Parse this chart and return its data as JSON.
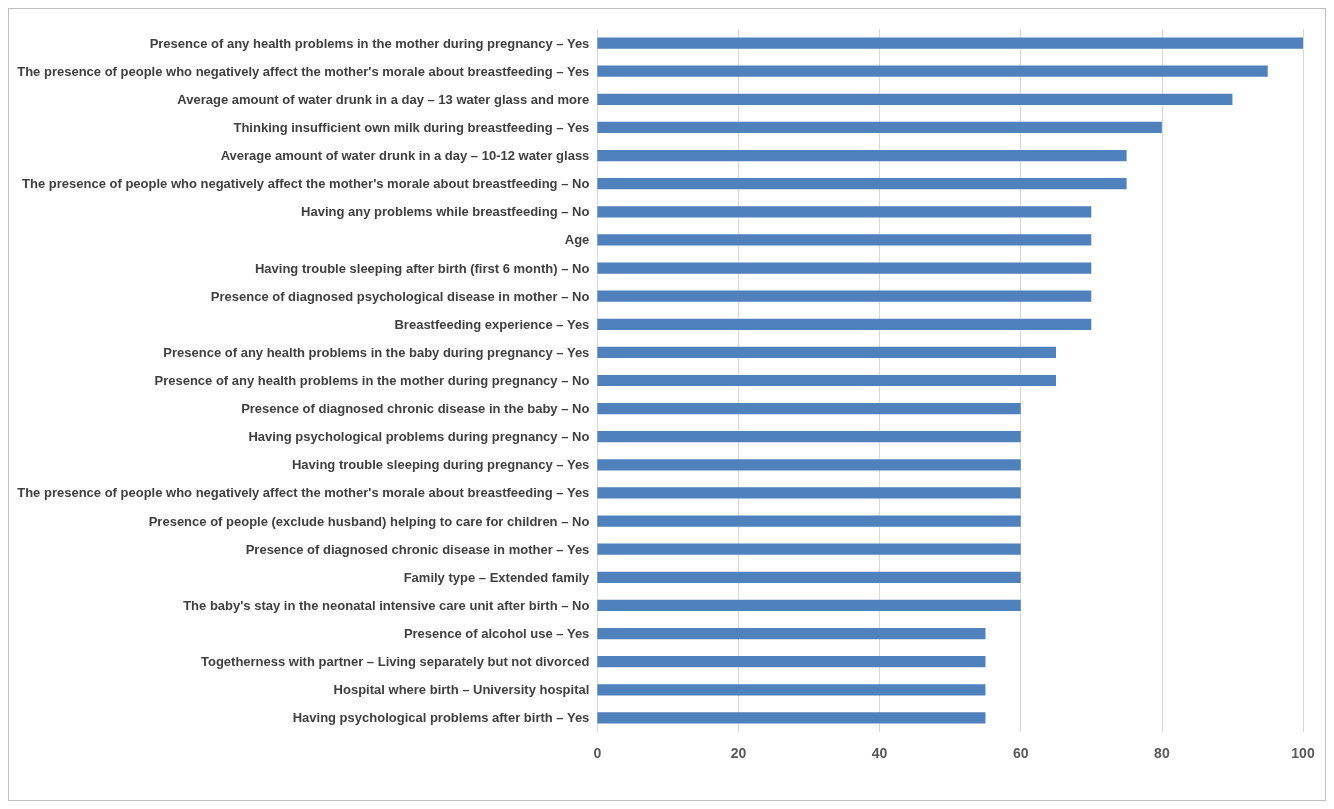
{
  "chart_data": {
    "type": "bar",
    "orientation": "horizontal",
    "color": "#4f81bd",
    "categories": [
      "Presence of any health problems in the mother during pregnancy – Yes",
      "The presence of people who negatively affect the mother's morale about breastfeeding – Yes",
      "Average amount of water drunk in a day – 13 water glass and more",
      "Thinking insufficient own milk during breastfeeding – Yes",
      "Average amount of water drunk in a day – 10-12 water glass",
      "The presence of people who negatively affect the mother's morale about breastfeeding – No",
      "Having any problems while breastfeeding – No",
      "Age",
      "Having trouble sleeping after birth (first 6 month) – No",
      "Presence of diagnosed psychological disease in mother – No",
      "Breastfeeding experience – Yes",
      "Presence of any health problems in the baby during pregnancy – Yes",
      "Presence of any health problems in the mother during pregnancy – No",
      "Presence of diagnosed chronic disease in the baby – No",
      "Having psychological problems during pregnancy – No",
      "Having trouble sleeping during pregnancy – Yes",
      "The presence of people who negatively affect the mother's morale about breastfeeding – Yes",
      "Presence of people (exclude husband) helping to care for children – No",
      "Presence of diagnosed chronic disease in mother – Yes",
      "Family type – Extended family",
      "The baby's stay in the neonatal intensive care unit after birth – No",
      "Presence of alcohol use – Yes",
      "Togetherness with partner – Living separately but not divorced",
      "Hospital where birth – University hospital",
      "Having psychological problems after birth – Yes"
    ],
    "values": [
      100,
      95,
      90,
      80,
      75,
      75,
      70,
      70,
      70,
      70,
      70,
      65,
      65,
      60,
      60,
      60,
      60,
      60,
      60,
      60,
      60,
      55,
      55,
      55,
      55
    ],
    "xlim": [
      0,
      100
    ],
    "xticks": [
      0,
      20,
      40,
      60,
      80,
      100
    ],
    "grid": "x"
  }
}
